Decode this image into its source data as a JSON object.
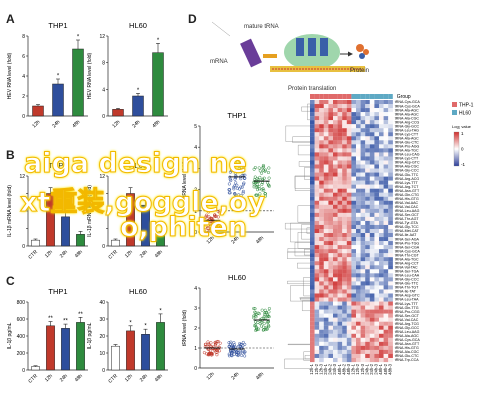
{
  "panels": {
    "A": {
      "letter": "A",
      "charts": [
        {
          "title": "THP1",
          "ylabel": "HEV RNA level (fold)",
          "categories": [
            "12h",
            "24h",
            "48h"
          ],
          "values": [
            1.0,
            3.2,
            6.7
          ],
          "errors": [
            0.15,
            0.5,
            0.9
          ],
          "ylim": [
            0,
            8
          ],
          "yticks": [
            "0",
            "2",
            "4",
            "6",
            "8"
          ],
          "stars": [
            "",
            "*",
            "*"
          ]
        },
        {
          "title": "HL60",
          "ylabel": "HEV RNA level (fold)",
          "categories": [
            "12h",
            "24h",
            "48h"
          ],
          "values": [
            1.0,
            3.0,
            9.5
          ],
          "errors": [
            0.15,
            0.4,
            1.4
          ],
          "ylim": [
            0,
            12
          ],
          "yticks": [
            "0",
            "4",
            "8",
            "12"
          ],
          "stars": [
            "",
            "*",
            "*"
          ]
        }
      ]
    },
    "B": {
      "letter": "B",
      "charts": [
        {
          "title": "THP1",
          "ylabel": "IL-1β mRNA level (fold)",
          "categories": [
            "CTR",
            "12h",
            "24h",
            "48h"
          ],
          "values": [
            1,
            9,
            5,
            2
          ],
          "errors": [
            0.2,
            1,
            0.8,
            0.5
          ],
          "ylim": [
            0,
            12
          ],
          "yticks": [
            "0",
            "",
            "",
            "",
            "12"
          ],
          "stars": [
            "",
            "",
            "",
            ""
          ]
        },
        {
          "title": "HL60",
          "ylabel": "IL-1β mRNA level (fold)",
          "categories": [
            "CTR",
            "12h",
            "24h",
            "48h"
          ],
          "values": [
            1,
            9,
            7,
            2
          ],
          "errors": [
            0.2,
            1,
            0.8,
            0.5
          ],
          "ylim": [
            0,
            12
          ],
          "yticks": [
            "0",
            "",
            "",
            "",
            "12"
          ],
          "stars": [
            "",
            "",
            "",
            ""
          ]
        }
      ]
    },
    "C": {
      "letter": "C",
      "charts": [
        {
          "title": "THP1",
          "ylabel": "IL-1β pg/mL",
          "categories": [
            "CTR",
            "12h",
            "24h",
            "48h"
          ],
          "values": [
            40,
            520,
            490,
            560
          ],
          "errors": [
            10,
            50,
            50,
            60
          ],
          "ylim": [
            0,
            800
          ],
          "yticks": [
            "0",
            "200",
            "400",
            "600",
            "800"
          ],
          "stars": [
            "",
            "**",
            "**",
            "**"
          ]
        },
        {
          "title": "HL60",
          "ylabel": "IL-1β pg/mL",
          "categories": [
            "CTR",
            "12h",
            "24h",
            "48h"
          ],
          "values": [
            14,
            23,
            21,
            28
          ],
          "errors": [
            1,
            3,
            3,
            5
          ],
          "ylim": [
            0,
            40
          ],
          "yticks": [
            "0",
            "10",
            "20",
            "30",
            "40"
          ],
          "stars": [
            "",
            "*",
            "*",
            "*"
          ]
        }
      ]
    },
    "D": {
      "letter": "D",
      "diagram": {
        "trna_label": "mature\ntRNA",
        "mrna_label": "mRNA",
        "protein_label": "Protein",
        "caption": "Protein translation"
      },
      "scatter": [
        {
          "title": "THP1",
          "ylabel": "tRNA level (fold)",
          "categories": [
            "12h",
            "24h",
            "48h"
          ],
          "yticks": [
            "0",
            "1",
            "2",
            "3",
            "4",
            "5"
          ]
        },
        {
          "title": "HL60",
          "ylabel": "tRNA level (fold)",
          "categories": [
            "12h",
            "24h",
            "48h"
          ],
          "yticks": [
            "0",
            "1",
            "2",
            "3",
            "4"
          ]
        }
      ],
      "heatmap": {
        "group_label": "Group",
        "legend": [
          {
            "name": "THP-1",
            "color": "#e06a6a"
          },
          {
            "name": "HL60",
            "color": "#5ea9c4"
          }
        ],
        "scale_label": "Log₂ value",
        "scale_ticks": [
          "1",
          "0",
          "-1"
        ],
        "columns": [
          "12h-1",
          "12h-2",
          "12h-3",
          "24h-1",
          "24h-2",
          "24h-3",
          "48h-1",
          "48h-2",
          "48h-3",
          "12h-1",
          "12h-2",
          "12h-3",
          "24h-1",
          "24h-2",
          "24h-3",
          "48h-1",
          "48h-2",
          "48h-3"
        ],
        "rows": [
          "tRNA-Cys-GCA",
          "tRNA-Cys-GCA",
          "tRNA-Ala-AGC",
          "tRNA-Ala-AGC",
          "tRNA-Ala-CGC",
          "tRNA-Arg-CCG",
          "tRNA-Gly-GCC",
          "tRNA-Leu-TAG",
          "tRNA-Lys-CTT",
          "tRNA-Ala-AGC",
          "tRNA-Glu-CTC",
          "tRNA-Pro-AGG",
          "tRNA-Ala-TGC",
          "tRNA-Leu-CAG",
          "tRNA-Lys-CTT",
          "tRNA-Asp-GTC",
          "tRNA-Ala-CGC",
          "tRNA-Gly-CCC",
          "tRNA-Glu-TTC",
          "tRNA-Arg-ACG",
          "tRNA-Lys-TTT",
          "tRNA-Arg-TCT",
          "tRNA-Asn-GTT",
          "tRNA-Gln-CTG",
          "tRNA-His-GTG",
          "tRNA-Val-AAC",
          "tRNA-Val-CAC",
          "tRNA-Leu-AAG",
          "tRNA-Ser-GCT",
          "tRNA-Thr-AGT",
          "tRNA-Tyr-GTA",
          "tRNA-Gly-TCC",
          "tRNA-Met-CAT",
          "tRNA-Ile-AAT",
          "tRNA-Ser-AGA",
          "tRNA-Pro-TGG",
          "tRNA-Ser-CGA",
          "tRNA-Cys-GCA",
          "tRNA-Thr-CGT",
          "tRNA-Ala-TGC",
          "tRNA-Arg-CCT",
          "tRNA-Val-TAC",
          "tRNA-Ser-TGA",
          "tRNA-Leu-CAA",
          "tRNA-Gly-CCC",
          "tRNA-Glu-TTC",
          "tRNA-Thr-TGT",
          "tRNA-Ile-TAT",
          "tRNA-Asp-GTC",
          "tRNA-Leu-TAA",
          "tRNA-Lys-TTT",
          "tRNA-Gln-TTG",
          "tRNA-Pro-CGG",
          "tRNA-Ser-GCT",
          "tRNA-Val-CAC",
          "tRNA-Arg-TCG",
          "tRNA-Gly-GCC",
          "tRNA-Leu-AAG",
          "tRNA-Ala-AGC",
          "tRNA-Cys-GCA",
          "tRNA-Asn-GTT",
          "tRNA-His-GTG",
          "tRNA-Ala-CGC",
          "tRNA-Glu-CTC",
          "tRNA-Trp-CCA"
        ]
      }
    }
  },
  "watermark": {
    "line1": "aiga design ne",
    "line2": "xt重装,goggle,oy",
    "line3": "o,phiten"
  }
}
